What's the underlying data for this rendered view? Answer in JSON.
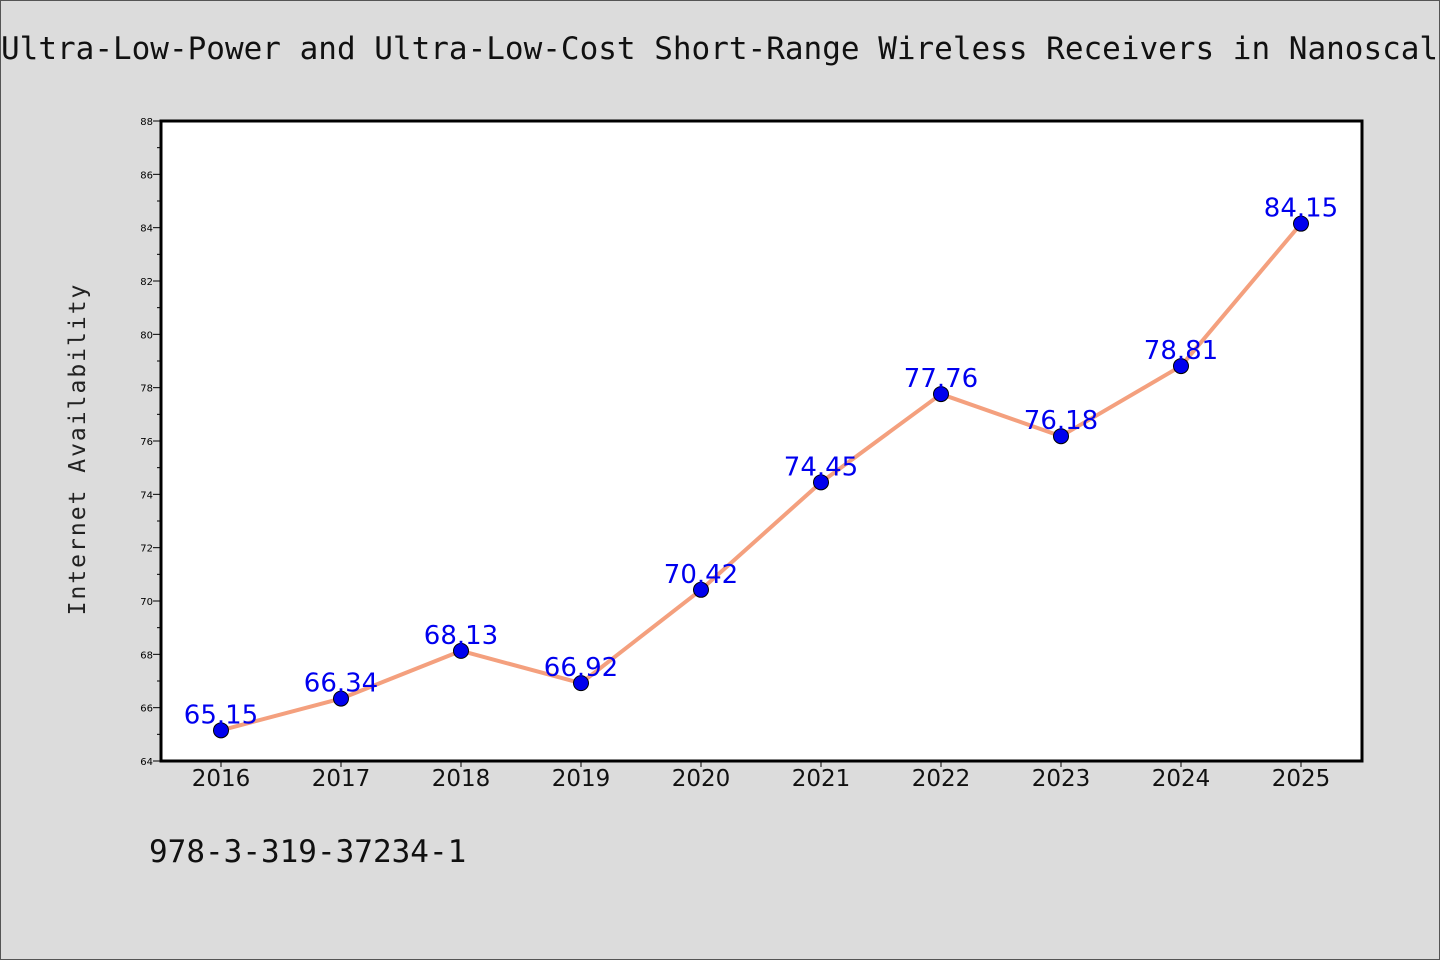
{
  "chart_data": {
    "type": "line",
    "title": "Ultra-Low-Power and Ultra-Low-Cost Short-Range Wireless Receivers in Nanoscale C",
    "xlabel": "",
    "ylabel": "Internet Availability",
    "categories": [
      "2016",
      "2017",
      "2018",
      "2019",
      "2020",
      "2021",
      "2022",
      "2023",
      "2024",
      "2025"
    ],
    "values": [
      65.15,
      66.34,
      68.13,
      66.92,
      70.42,
      74.45,
      77.76,
      76.18,
      78.81,
      84.15
    ],
    "data_labels": [
      "65.15",
      "66.34",
      "68.13",
      "66.92",
      "70.42",
      "74.45",
      "77.76",
      "76.18",
      "78.81",
      "84.15"
    ],
    "ylim": [
      64,
      88
    ],
    "yticks": [
      "64",
      "66",
      "68",
      "70",
      "72",
      "74",
      "76",
      "78",
      "80",
      "82",
      "84",
      "86",
      "88"
    ],
    "grid": false,
    "legend": "none",
    "colors": {
      "line": "#f4a07e",
      "marker": "#0000ee",
      "label": "#0000ee",
      "background": "#dcdcdc",
      "plot": "#ffffff"
    }
  },
  "footer": {
    "code": "978-3-319-37234-1"
  }
}
